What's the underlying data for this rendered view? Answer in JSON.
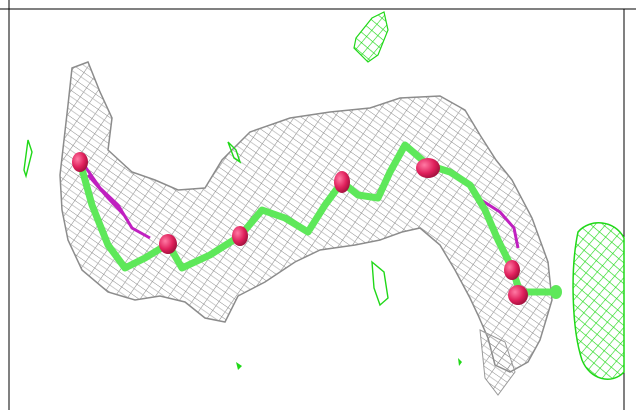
{
  "image": {
    "subject": "electron-density-mesh-with-ligand-stick-model",
    "background_color": "#ffffff",
    "mesh_color": "#9a9a9a",
    "positive_density_color": "#22e01a",
    "ligand_carbon_color": "#5ee85a",
    "ligand_oxygen_color": "#e0205c",
    "alternate_bond_color": "#c020c0",
    "frame_color": "#000000"
  }
}
